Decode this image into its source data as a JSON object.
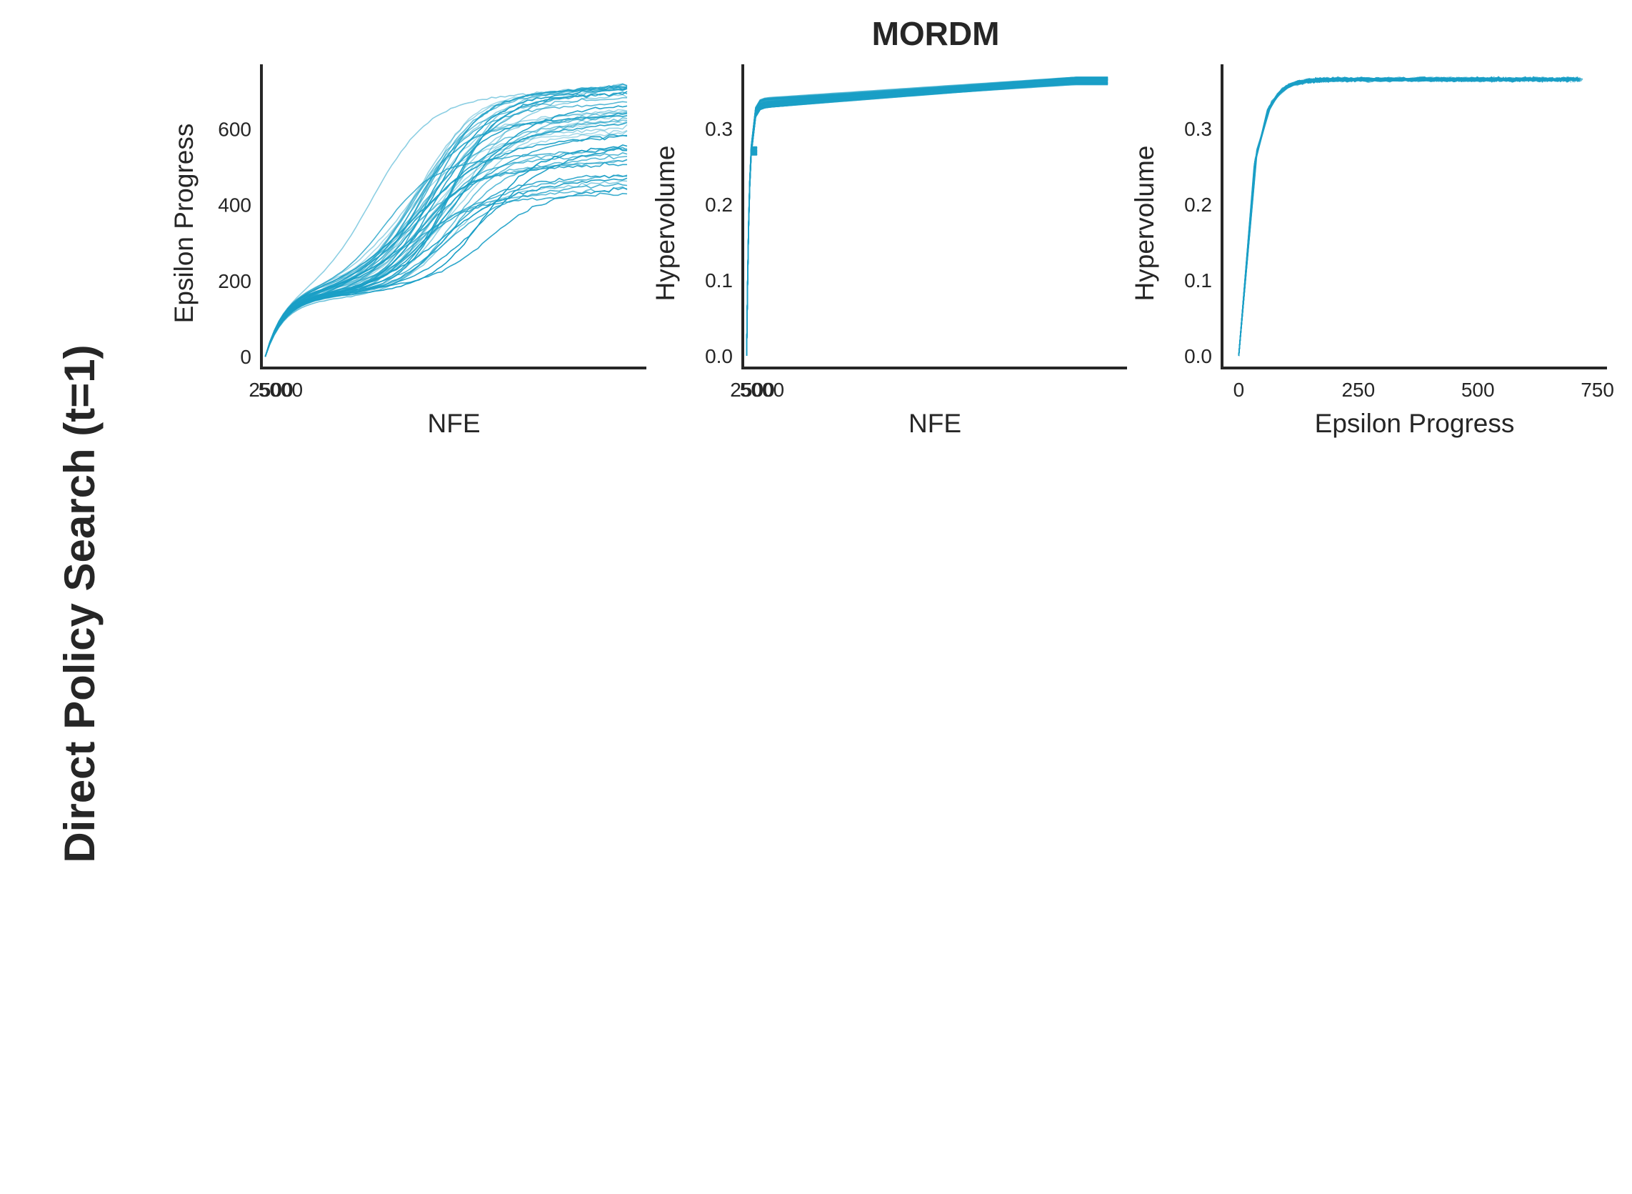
{
  "figure": {
    "title": "MORDM",
    "row_label": "Direct Policy Search (t=1)",
    "line_color": "#1a9fc6"
  },
  "chart_data": [
    {
      "type": "line",
      "panel": "left",
      "xlabel": "NFE",
      "ylabel": "Epsilon Progress",
      "xticks": [
        2500,
        5000
      ],
      "yticks": [
        0,
        200,
        400,
        600
      ],
      "xlim": [
        0,
        100000
      ],
      "ylim": [
        -30,
        770
      ],
      "x_end": 95000,
      "series_count": 50,
      "curve_shape": "sigmoidal rise; initial jump to ~150 then late growth ending between ~420 and ~720"
    },
    {
      "type": "line",
      "panel": "middle",
      "xlabel": "NFE",
      "ylabel": "Hypervolume",
      "xticks": [
        2500,
        5000
      ],
      "yticks": [
        0.0,
        0.1,
        0.2,
        0.3
      ],
      "xlim": [
        0,
        100000
      ],
      "ylim": [
        -0.016,
        0.385
      ],
      "x_end": 95000,
      "series_count": 50,
      "curve_shape": "steep rise to ~0.33 within first ~2500 NFE then slow increase to ~0.365"
    },
    {
      "type": "line",
      "panel": "right",
      "xlabel": "Epsilon Progress",
      "ylabel": "Hypervolume",
      "xticks": [
        0,
        250,
        500,
        750
      ],
      "yticks": [
        0.0,
        0.1,
        0.2,
        0.3
      ],
      "xlim": [
        -35,
        770
      ],
      "ylim": [
        -0.016,
        0.385
      ],
      "x_end_range": [
        420,
        730
      ],
      "series_count": 50,
      "curve_shape": "steep rise to ~0.32 by epsilon progress ~50 then plateau near ~0.365"
    }
  ]
}
